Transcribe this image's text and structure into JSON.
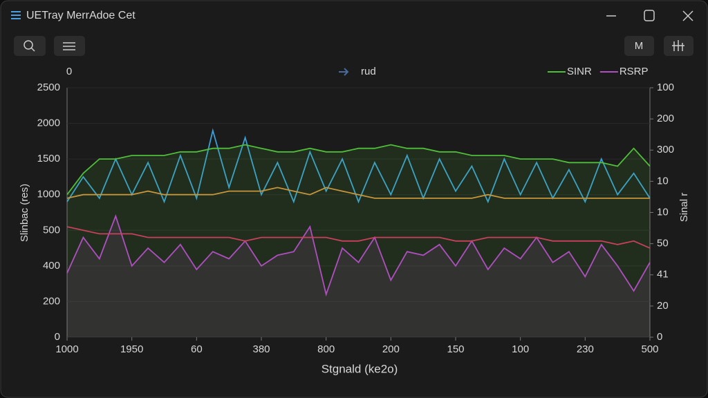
{
  "window": {
    "title": "UETray MerrAdoe Cet",
    "button": "M"
  },
  "chart_data": {
    "type": "line",
    "corner_label": "0",
    "ylabel": "Slinbac (res)",
    "y2label": "Sinal r",
    "xlabel": "Stgnald (ke2o)",
    "grid": true,
    "xlim": [
      0,
      9
    ],
    "ylim": [
      0,
      7
    ],
    "y2lim": [
      0,
      8
    ],
    "xticks": [
      {
        "value": 0,
        "label": "1000"
      },
      {
        "value": 1,
        "label": "1950"
      },
      {
        "value": 2,
        "label": "60"
      },
      {
        "value": 3,
        "label": "380"
      },
      {
        "value": 4,
        "label": "800"
      },
      {
        "value": 5,
        "label": "200"
      },
      {
        "value": 6,
        "label": "150"
      },
      {
        "value": 7,
        "label": "100"
      },
      {
        "value": 8,
        "label": "230"
      },
      {
        "value": 9,
        "label": "500"
      }
    ],
    "yticks": [
      {
        "value": 0,
        "label": "0"
      },
      {
        "value": 1,
        "label": "200"
      },
      {
        "value": 2,
        "label": "400"
      },
      {
        "value": 3,
        "label": "500"
      },
      {
        "value": 4,
        "label": "1000"
      },
      {
        "value": 5,
        "label": "1500"
      },
      {
        "value": 6,
        "label": "2000"
      },
      {
        "value": 7,
        "label": "2500"
      }
    ],
    "y2ticks": [
      {
        "value": 0,
        "label": "0"
      },
      {
        "value": 1,
        "label": "20"
      },
      {
        "value": 2,
        "label": "41"
      },
      {
        "value": 3,
        "label": "50"
      },
      {
        "value": 4,
        "label": "10"
      },
      {
        "value": 5,
        "label": "10"
      },
      {
        "value": 6,
        "label": "300"
      },
      {
        "value": 7,
        "label": "200"
      },
      {
        "value": 8,
        "label": "100"
      }
    ],
    "x": [
      0,
      0.25,
      0.5,
      0.75,
      1,
      1.25,
      1.5,
      1.75,
      2,
      2.25,
      2.5,
      2.75,
      3,
      3.25,
      3.5,
      3.75,
      4,
      4.25,
      4.5,
      4.75,
      5,
      5.25,
      5.5,
      5.75,
      6,
      6.25,
      6.5,
      6.75,
      7,
      7.25,
      7.5,
      7.75,
      8,
      8.25,
      8.5,
      8.75,
      9
    ],
    "series": [
      {
        "name": "rud",
        "color": "#3aa0d8",
        "legend": "center",
        "values": [
          3.8,
          4.5,
          3.9,
          5.0,
          4.0,
          4.9,
          3.8,
          5.1,
          3.9,
          5.8,
          4.2,
          5.6,
          4.0,
          4.9,
          3.8,
          5.2,
          4.1,
          5.0,
          3.8,
          4.9,
          4.0,
          5.1,
          3.9,
          5.0,
          4.1,
          4.8,
          3.8,
          5.0,
          4.0,
          4.9,
          3.9,
          4.7,
          3.8,
          5.0,
          4.0,
          4.6,
          3.9
        ]
      },
      {
        "name": "SINR",
        "color": "#4fbf3a",
        "area": true,
        "legend": "right",
        "values": [
          4.0,
          4.6,
          5.0,
          5.0,
          5.1,
          5.1,
          5.1,
          5.2,
          5.2,
          5.3,
          5.3,
          5.4,
          5.3,
          5.2,
          5.2,
          5.3,
          5.2,
          5.2,
          5.3,
          5.3,
          5.4,
          5.3,
          5.3,
          5.2,
          5.2,
          5.1,
          5.1,
          5.1,
          5.0,
          5.0,
          5.0,
          4.9,
          4.9,
          4.9,
          4.8,
          5.3,
          4.8
        ]
      },
      {
        "color": "#c8963a",
        "values": [
          3.9,
          4.0,
          4.0,
          4.0,
          4.0,
          4.1,
          4.0,
          4.0,
          4.0,
          4.0,
          4.1,
          4.1,
          4.1,
          4.2,
          4.1,
          4.0,
          4.2,
          4.1,
          4.0,
          3.9,
          3.9,
          3.9,
          3.9,
          3.9,
          3.9,
          3.9,
          4.0,
          3.9,
          3.9,
          3.9,
          3.9,
          3.9,
          3.9,
          3.9,
          3.9,
          3.9,
          3.9
        ]
      },
      {
        "name": "RSRP",
        "color": "#b04fc0",
        "area": true,
        "legend": "right",
        "values": [
          1.8,
          2.8,
          2.2,
          3.4,
          2.0,
          2.5,
          2.1,
          2.6,
          1.9,
          2.4,
          2.2,
          2.7,
          2.0,
          2.3,
          2.4,
          3.1,
          1.2,
          2.5,
          2.1,
          2.8,
          1.6,
          2.4,
          2.3,
          2.6,
          2.0,
          2.7,
          1.9,
          2.5,
          2.2,
          2.8,
          2.1,
          2.4,
          1.7,
          2.6,
          2.0,
          1.3,
          2.1
        ]
      },
      {
        "color": "#c8405a",
        "values": [
          3.1,
          3.0,
          2.9,
          2.9,
          2.9,
          2.8,
          2.8,
          2.8,
          2.8,
          2.8,
          2.8,
          2.7,
          2.8,
          2.8,
          2.8,
          2.8,
          2.8,
          2.7,
          2.7,
          2.8,
          2.8,
          2.8,
          2.8,
          2.8,
          2.7,
          2.7,
          2.8,
          2.8,
          2.8,
          2.8,
          2.7,
          2.7,
          2.7,
          2.7,
          2.6,
          2.7,
          2.5
        ]
      }
    ]
  }
}
